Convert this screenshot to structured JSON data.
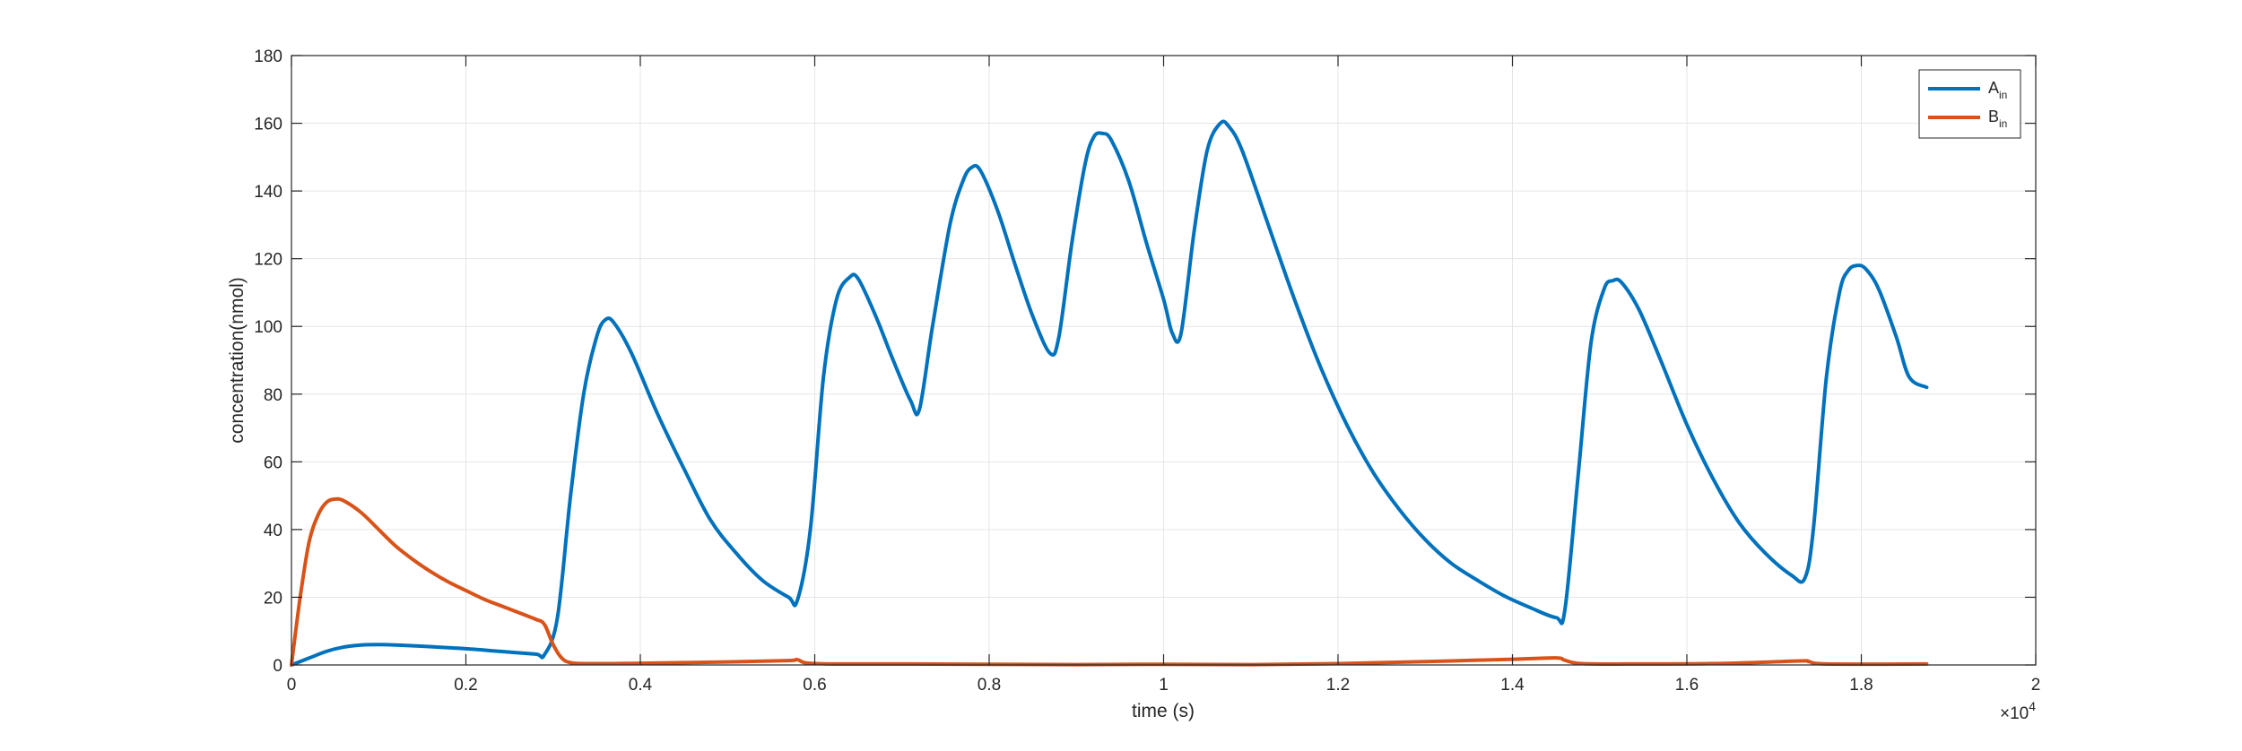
{
  "chart_data": {
    "type": "line",
    "title": "",
    "xlabel": "time (s)",
    "ylabel": "concentration(nmol)",
    "x_exponent_label": "×10",
    "x_exponent_power": "4",
    "xlim": [
      0,
      20000
    ],
    "ylim": [
      0,
      180
    ],
    "x_ticks": [
      0,
      2000,
      4000,
      6000,
      8000,
      10000,
      12000,
      14000,
      16000,
      18000,
      20000
    ],
    "x_tick_labels": [
      "0",
      "0.2",
      "0.4",
      "0.6",
      "0.8",
      "1",
      "1.2",
      "1.4",
      "1.6",
      "1.8",
      "2"
    ],
    "y_ticks": [
      0,
      20,
      40,
      60,
      80,
      100,
      120,
      140,
      160,
      180
    ],
    "y_tick_labels": [
      "0",
      "20",
      "40",
      "60",
      "80",
      "100",
      "120",
      "140",
      "160",
      "180"
    ],
    "grid": true,
    "legend_position": "top-right",
    "series": [
      {
        "name": "A",
        "name_subscript": "in",
        "color": "#0072BD",
        "points": [
          [
            0,
            0
          ],
          [
            200,
            2
          ],
          [
            400,
            4
          ],
          [
            600,
            5.3
          ],
          [
            800,
            5.9
          ],
          [
            1000,
            6
          ],
          [
            1200,
            5.9
          ],
          [
            1600,
            5.4
          ],
          [
            2000,
            4.8
          ],
          [
            2400,
            4.0
          ],
          [
            2800,
            3.2
          ],
          [
            2900,
            3.0
          ],
          [
            3050,
            14
          ],
          [
            3200,
            50
          ],
          [
            3350,
            80
          ],
          [
            3500,
            97
          ],
          [
            3600,
            102
          ],
          [
            3700,
            101
          ],
          [
            3900,
            92
          ],
          [
            4200,
            74
          ],
          [
            4500,
            58
          ],
          [
            4800,
            43
          ],
          [
            5100,
            33
          ],
          [
            5400,
            25
          ],
          [
            5700,
            20
          ],
          [
            5800,
            19
          ],
          [
            5950,
            40
          ],
          [
            6100,
            85
          ],
          [
            6250,
            108
          ],
          [
            6400,
            114.5
          ],
          [
            6500,
            114
          ],
          [
            6700,
            103
          ],
          [
            6900,
            90
          ],
          [
            7100,
            78
          ],
          [
            7200,
            75.5
          ],
          [
            7350,
            100
          ],
          [
            7550,
            130
          ],
          [
            7700,
            143
          ],
          [
            7800,
            147
          ],
          [
            7900,
            146
          ],
          [
            8100,
            134
          ],
          [
            8300,
            118
          ],
          [
            8500,
            103
          ],
          [
            8700,
            92
          ],
          [
            8800,
            97
          ],
          [
            8950,
            125
          ],
          [
            9100,
            148
          ],
          [
            9200,
            156
          ],
          [
            9300,
            157
          ],
          [
            9400,
            155
          ],
          [
            9600,
            143
          ],
          [
            9800,
            125
          ],
          [
            10000,
            108
          ],
          [
            10100,
            98
          ],
          [
            10200,
            98
          ],
          [
            10350,
            128
          ],
          [
            10500,
            152
          ],
          [
            10650,
            160
          ],
          [
            10750,
            159
          ],
          [
            10900,
            152
          ],
          [
            11200,
            130
          ],
          [
            11500,
            108
          ],
          [
            11800,
            88
          ],
          [
            12100,
            71
          ],
          [
            12400,
            57
          ],
          [
            12700,
            46
          ],
          [
            13000,
            37
          ],
          [
            13300,
            30
          ],
          [
            13600,
            25
          ],
          [
            13900,
            20.5
          ],
          [
            14200,
            17
          ],
          [
            14500,
            14
          ],
          [
            14600,
            16
          ],
          [
            14750,
            55
          ],
          [
            14900,
            95
          ],
          [
            15050,
            111
          ],
          [
            15150,
            113.5
          ],
          [
            15250,
            113
          ],
          [
            15450,
            105
          ],
          [
            15700,
            90
          ],
          [
            16000,
            71
          ],
          [
            16300,
            55
          ],
          [
            16600,
            42
          ],
          [
            16900,
            33
          ],
          [
            17200,
            26.5
          ],
          [
            17350,
            25.5
          ],
          [
            17450,
            40
          ],
          [
            17600,
            85
          ],
          [
            17750,
            110
          ],
          [
            17850,
            116.5
          ],
          [
            17950,
            118
          ],
          [
            18050,
            117
          ],
          [
            18200,
            111
          ],
          [
            18400,
            97
          ],
          [
            18550,
            85
          ],
          [
            18750,
            82
          ]
        ]
      },
      {
        "name": "B",
        "name_subscript": "in",
        "color": "#D95319",
        "points": [
          [
            0,
            0
          ],
          [
            100,
            20
          ],
          [
            200,
            36
          ],
          [
            300,
            44
          ],
          [
            400,
            48
          ],
          [
            500,
            49
          ],
          [
            600,
            48.5
          ],
          [
            800,
            45
          ],
          [
            1000,
            40
          ],
          [
            1200,
            35
          ],
          [
            1400,
            31
          ],
          [
            1600,
            27.5
          ],
          [
            1800,
            24.5
          ],
          [
            2000,
            22
          ],
          [
            2200,
            19.5
          ],
          [
            2400,
            17.5
          ],
          [
            2600,
            15.5
          ],
          [
            2800,
            13.5
          ],
          [
            2900,
            12
          ],
          [
            3000,
            6
          ],
          [
            3100,
            2
          ],
          [
            3200,
            0.7
          ],
          [
            3400,
            0.4
          ],
          [
            4000,
            0.5
          ],
          [
            5000,
            0.9
          ],
          [
            5700,
            1.3
          ],
          [
            5800,
            1.6
          ],
          [
            5900,
            0.6
          ],
          [
            6200,
            0.3
          ],
          [
            7000,
            0.3
          ],
          [
            8000,
            0.2
          ],
          [
            9000,
            0.1
          ],
          [
            10000,
            0.2
          ],
          [
            11000,
            0.1
          ],
          [
            12000,
            0.4
          ],
          [
            13000,
            1.0
          ],
          [
            14000,
            1.7
          ],
          [
            14500,
            2.1
          ],
          [
            14600,
            1.4
          ],
          [
            14800,
            0.4
          ],
          [
            15500,
            0.3
          ],
          [
            16500,
            0.5
          ],
          [
            17300,
            1.2
          ],
          [
            17400,
            1.0
          ],
          [
            17600,
            0.3
          ],
          [
            18750,
            0.3
          ]
        ]
      }
    ]
  }
}
